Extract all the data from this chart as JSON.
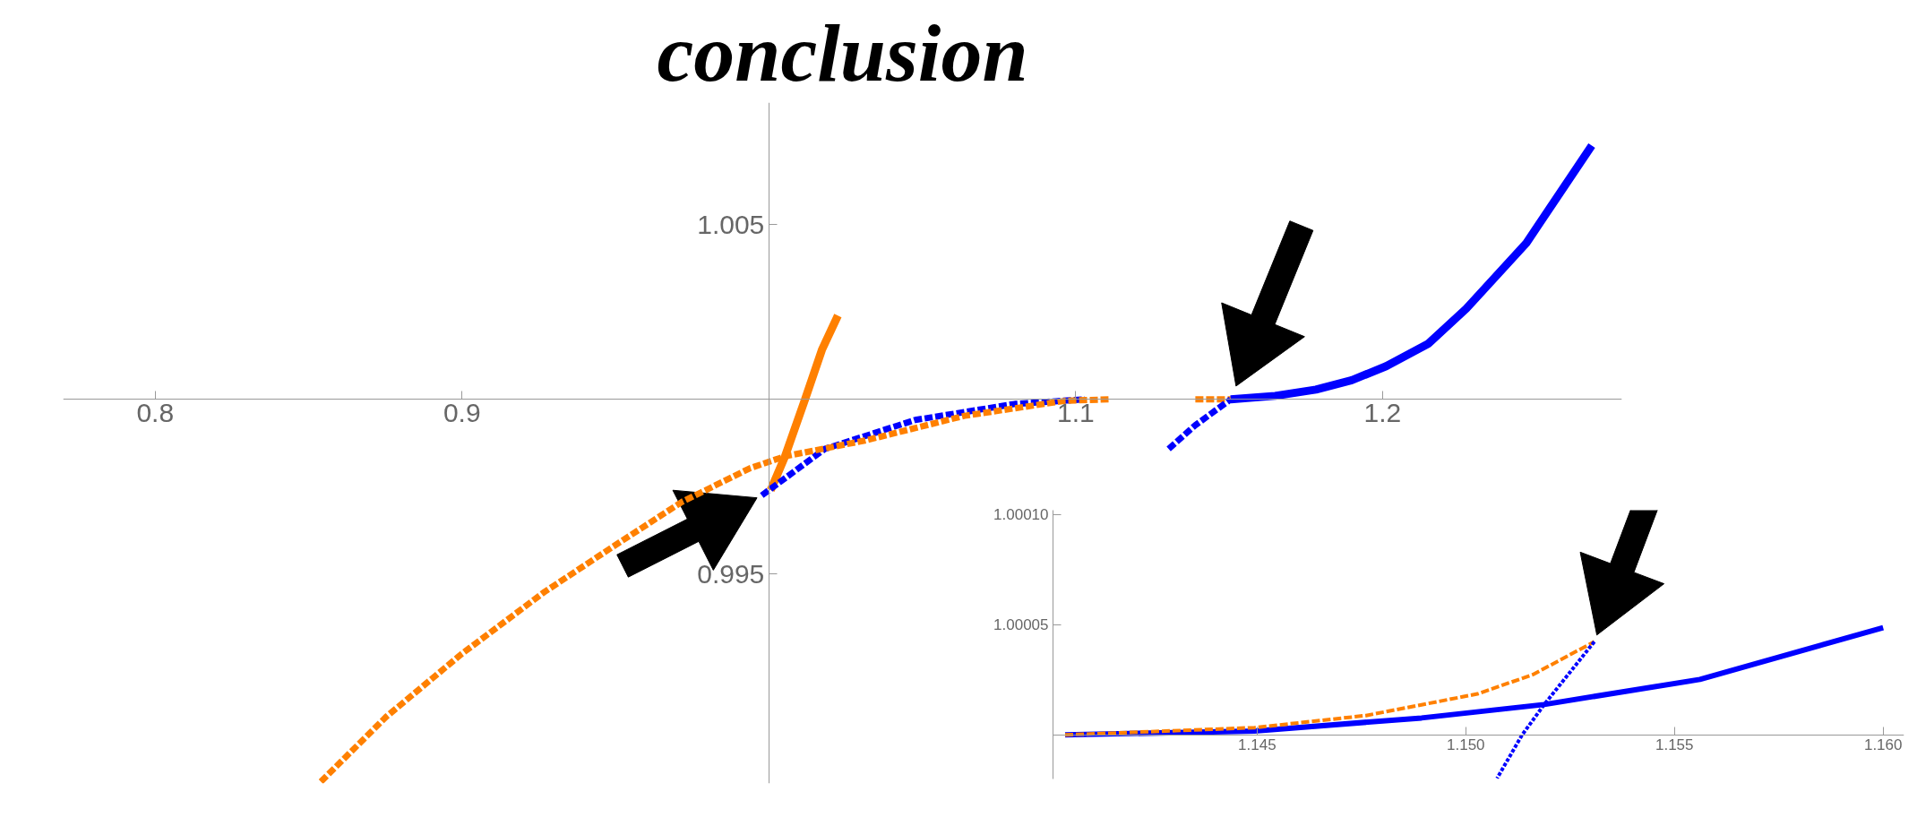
{
  "chart_data": [
    {
      "type": "line",
      "title": "conclusion",
      "xlim": [
        0.77,
        1.278
      ],
      "ylim": [
        0.989,
        1.0085
      ],
      "xticks": [
        0.8,
        0.9,
        {
          "value": 1.0,
          "label": null
        },
        1.1,
        1.2
      ],
      "yticks": [
        0.995,
        {
          "value": 1.0,
          "label": null
        },
        1.005
      ],
      "series": [
        {
          "color": "#ff8000",
          "line_style": "solid",
          "x": [
            1.0006,
            1.0052,
            1.0118,
            1.0173,
            1.0225
          ],
          "values": [
            0.9974,
            0.99835,
            1.0,
            1.00142,
            1.0024
          ]
        },
        {
          "color": "#0000ff",
          "line_style": "dashed",
          "x": [
            0.9977,
            1.0182,
            1.0477,
            1.0802,
            1.103
          ],
          "values": [
            0.99725,
            0.99858,
            0.99941,
            0.99987,
            1.0
          ]
        },
        {
          "color": "#ff8000",
          "line_style": "dashed",
          "x": [
            0.854,
            0.8753,
            0.8999,
            0.9268,
            0.949,
            0.9716,
            0.9939,
            1.0053,
            1.0313,
            1.0638,
            1.0966,
            1.1107
          ],
          "values": [
            0.98905,
            0.99091,
            0.99271,
            0.99448,
            0.99577,
            0.99706,
            0.99803,
            0.99837,
            0.99882,
            0.99953,
            0.99996,
            1.0
          ]
        },
        {
          "color": "#ff8000",
          "line_style": "dashed",
          "x": [
            1.139,
            1.1505
          ],
          "values": [
            1.0,
            1.0
          ]
        },
        {
          "color": "#0000ff",
          "line_style": "dashed",
          "x": [
            1.1303,
            1.139,
            1.1505
          ],
          "values": [
            0.99858,
            0.99926,
            1.0
          ]
        },
        {
          "color": "#0000ff",
          "line_style": "solid",
          "x": [
            1.1505,
            1.165,
            1.1783,
            1.19,
            1.2012,
            1.215,
            1.2273,
            1.2469,
            1.2682
          ],
          "values": [
            1.0,
            1.0001,
            1.00028,
            1.00055,
            1.00095,
            1.0016,
            1.0026,
            1.00448,
            1.00727
          ]
        }
      ]
    },
    {
      "type": "line",
      "xlim": [
        1.14011,
        1.1605
      ],
      "ylim": [
        0.99998,
        1.000102
      ],
      "xticks": [
        {
          "value": 1.145,
          "label": "1.145"
        },
        {
          "value": 1.15,
          "label": "1.150"
        },
        {
          "value": 1.155,
          "label": "1.155"
        },
        {
          "value": 1.16,
          "label": "1.160"
        }
      ],
      "yticks": [
        {
          "value": 1.0,
          "label": null
        },
        {
          "value": 1.00005,
          "label": "1.00005"
        },
        {
          "value": 1.0001,
          "label": "1.00010"
        }
      ],
      "series": [
        {
          "color": "#0000ff",
          "line_style": "solid",
          "x": [
            1.1404,
            1.14494,
            1.14894,
            1.15188,
            1.15561,
            1.16
          ],
          "values": [
            1.0,
            1.0000018,
            1.0000077,
            1.0000138,
            1.0000252,
            1.0000487
          ]
        },
        {
          "color": "#ff8000",
          "line_style": "dashed",
          "x": [
            1.1404,
            1.14494,
            1.14761,
            1.15028,
            1.15161,
            1.15308
          ],
          "values": [
            1.0,
            1.0000033,
            1.0000088,
            1.0000186,
            1.0000274,
            1.0000423
          ]
        },
        {
          "color": "#0000ff",
          "line_style": "dotted",
          "x": [
            1.15308,
            1.15188,
            1.15135,
            1.15075
          ],
          "values": [
            1.0000423,
            1.0000138,
            1.0,
            0.9999803
          ]
        }
      ]
    }
  ]
}
